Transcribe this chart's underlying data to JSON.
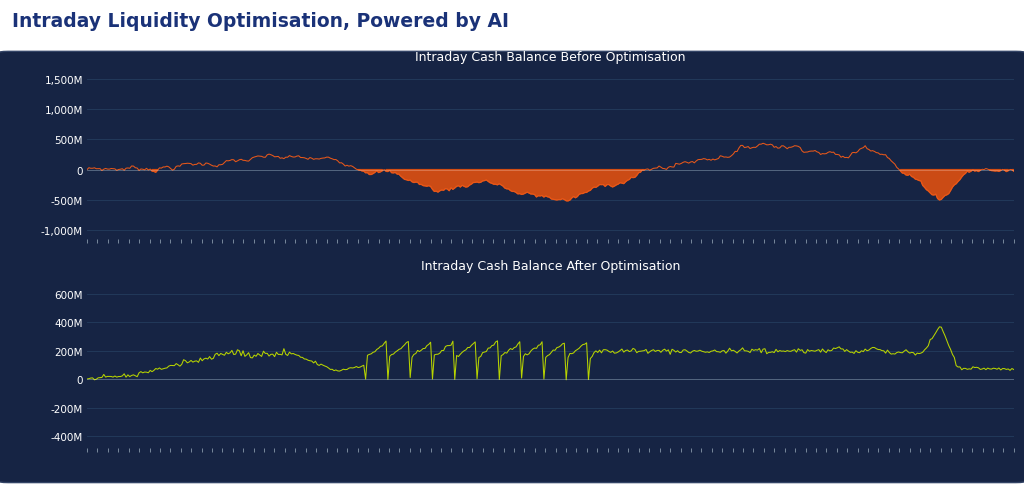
{
  "title": "Intraday Liquidity Optimisation, Powered by AI",
  "title_color": "#1a3278",
  "bg_outer": "#ffffff",
  "bg_panel": "#162444",
  "chart1_title": "Intraday Cash Balance Before Optimisation",
  "chart2_title": "Intraday Cash Balance After Optimisation",
  "chart1_yticks": [
    "1,500M",
    "1,000M",
    "500M",
    "0",
    "-500M",
    "-1,000M"
  ],
  "chart1_ytick_vals": [
    1500,
    1000,
    500,
    0,
    -500,
    -1000
  ],
  "chart1_ylim": [
    -1150,
    1700
  ],
  "chart2_yticks": [
    "600M",
    "400M",
    "200M",
    "0",
    "-200M",
    "-400M"
  ],
  "chart2_ytick_vals": [
    600,
    400,
    200,
    0,
    -200,
    -400
  ],
  "chart2_ylim": [
    -480,
    730
  ],
  "line1_color": "#e8581a",
  "fill1_pos_color": "#e8581a",
  "fill1_neg_color": "#e05010",
  "line2_color": "#b8d400",
  "tick_color": "#8899aa",
  "label_color": "#ffffff",
  "grid_color": "#243d5e",
  "title_color2": "#e0e8f0",
  "n_points": 500
}
